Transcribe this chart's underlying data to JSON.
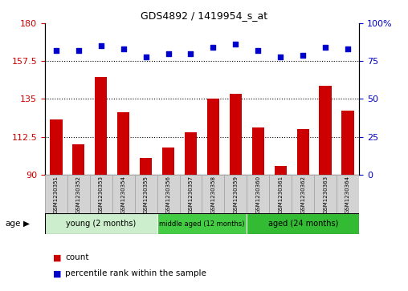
{
  "title": "GDS4892 / 1419954_s_at",
  "samples": [
    "GSM1230351",
    "GSM1230352",
    "GSM1230353",
    "GSM1230354",
    "GSM1230355",
    "GSM1230356",
    "GSM1230357",
    "GSM1230358",
    "GSM1230359",
    "GSM1230360",
    "GSM1230361",
    "GSM1230362",
    "GSM1230363",
    "GSM1230364"
  ],
  "counts": [
    123,
    108,
    148,
    127,
    100,
    106,
    115,
    135,
    138,
    118,
    95,
    117,
    143,
    128
  ],
  "percentile_ranks": [
    82,
    82,
    85,
    83,
    78,
    80,
    80,
    84,
    86,
    82,
    78,
    79,
    84,
    83
  ],
  "ylim_left": [
    90,
    180
  ],
  "ylim_right": [
    0,
    100
  ],
  "yticks_left": [
    90,
    112.5,
    135,
    157.5,
    180
  ],
  "yticks_right": [
    0,
    25,
    50,
    75,
    100
  ],
  "bar_color": "#cc0000",
  "dot_color": "#0000cc",
  "groups": [
    {
      "label": "young (2 months)",
      "start": 0,
      "end": 5,
      "color": "#cceecc"
    },
    {
      "label": "middle aged (12 months)",
      "start": 5,
      "end": 9,
      "color": "#44cc44"
    },
    {
      "label": "aged (24 months)",
      "start": 9,
      "end": 14,
      "color": "#33bb33"
    }
  ],
  "group_row_label": "age",
  "legend_count_label": "count",
  "legend_percentile_label": "percentile rank within the sample",
  "sample_box_color": "#d3d3d3",
  "sample_box_edge": "#aaaaaa"
}
